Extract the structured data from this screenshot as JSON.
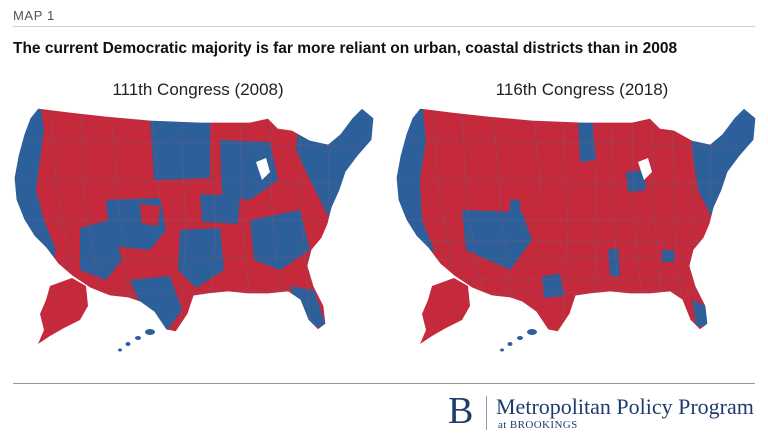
{
  "header": {
    "kicker": "MAP 1",
    "title": "The current Democratic majority is far more reliant on urban, coastal districts than in 2008"
  },
  "maps": [
    {
      "label": "111th Congress (2008)",
      "colors": {
        "democratic": "#2d5f9a",
        "republican": "#c42a3b",
        "district_line": "#7a5a78"
      }
    },
    {
      "label": "116th Congress (2018)",
      "colors": {
        "democratic": "#2d5f9a",
        "republican": "#c42a3b",
        "district_line": "#7a5a78"
      }
    }
  ],
  "footer": {
    "logo_mark": "B",
    "program": "Metropolitan Policy Program",
    "org": "at BROOKINGS"
  }
}
